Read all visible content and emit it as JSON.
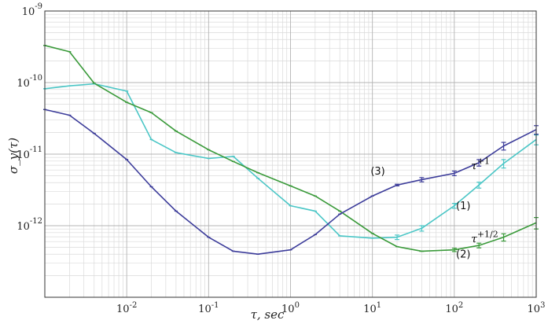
{
  "chart_data": {
    "type": "line",
    "xscale": "log",
    "yscale": "log",
    "xlim": [
      0.001,
      1000
    ],
    "ylim": [
      1e-13,
      1e-09
    ],
    "grid": true,
    "xlabel": "τ, sec",
    "ylabel": "σ_y(τ)",
    "xticks": [
      {
        "value": 0.01,
        "base": "10",
        "exp": "-2"
      },
      {
        "value": 0.1,
        "base": "10",
        "exp": "-1"
      },
      {
        "value": 1,
        "base": "10",
        "exp": "0"
      },
      {
        "value": 10,
        "base": "10",
        "exp": "1"
      },
      {
        "value": 100,
        "base": "10",
        "exp": "2"
      },
      {
        "value": 1000,
        "base": "10",
        "exp": "3"
      }
    ],
    "yticks": [
      {
        "value": 1e-09,
        "base": "10",
        "exp": "-9"
      },
      {
        "value": 1e-10,
        "base": "10",
        "exp": "-10"
      },
      {
        "value": 1e-11,
        "base": "10",
        "exp": "-11"
      },
      {
        "value": 1e-12,
        "base": "10",
        "exp": "-12"
      }
    ],
    "series": [
      {
        "label": "(1)",
        "color": "#4ac6c6",
        "x": [
          0.001,
          0.002,
          0.004,
          0.01,
          0.02,
          0.04,
          0.1,
          0.2,
          0.4,
          1,
          2,
          4,
          10,
          20,
          40,
          100,
          200,
          400,
          1000
        ],
        "y": [
          8.2e-11,
          9e-11,
          9.6e-11,
          7.6e-11,
          1.6e-11,
          1.05e-11,
          8.7e-12,
          9.3e-12,
          4.6e-12,
          1.9e-12,
          1.6e-12,
          7.2e-13,
          6.7e-13,
          6.9e-13,
          9.2e-13,
          1.9e-12,
          3.7e-12,
          7.4e-12,
          1.6e-11
        ],
        "err": [
          0,
          0,
          0,
          0,
          0,
          0,
          0,
          0,
          0,
          0,
          0,
          0,
          0,
          5e-14,
          8e-14,
          1.5e-13,
          3.5e-13,
          1e-12,
          2.5e-12
        ]
      },
      {
        "label": "(2)",
        "color": "#3a9a3a",
        "x": [
          0.001,
          0.002,
          0.004,
          0.01,
          0.02,
          0.04,
          0.1,
          0.2,
          0.4,
          1,
          2,
          4,
          10,
          20,
          40,
          100,
          200,
          400,
          1000
        ],
        "y": [
          3.3e-10,
          2.7e-10,
          9.8e-11,
          5.3e-11,
          3.8e-11,
          2.1e-11,
          1.15e-11,
          7.9e-12,
          5.5e-12,
          3.6e-12,
          2.6e-12,
          1.6e-12,
          7.8e-13,
          5.1e-13,
          4.4e-13,
          4.6e-13,
          5.3e-13,
          6.9e-13,
          1.1e-12
        ],
        "err": [
          0,
          0,
          0,
          0,
          0,
          0,
          0,
          0,
          0,
          0,
          0,
          0,
          0,
          0,
          2e-15,
          2.5e-14,
          4e-14,
          8e-14,
          2e-13
        ]
      },
      {
        "label": "(3)",
        "color": "#3c3c9a",
        "x": [
          0.001,
          0.002,
          0.004,
          0.01,
          0.02,
          0.04,
          0.1,
          0.2,
          0.4,
          1,
          2,
          4,
          10,
          20,
          40,
          100,
          200,
          400,
          1000
        ],
        "y": [
          4.2e-11,
          3.5e-11,
          1.95e-11,
          8.4e-12,
          3.5e-12,
          1.6e-12,
          6.9e-13,
          4.4e-13,
          4e-13,
          4.6e-13,
          7.5e-13,
          1.45e-12,
          2.6e-12,
          3.7e-12,
          4.4e-12,
          5.4e-12,
          7.6e-12,
          1.3e-11,
          2.2e-11
        ],
        "err": [
          0,
          0,
          0,
          0,
          0,
          0,
          0,
          0,
          0,
          0,
          0,
          0,
          0,
          1e-13,
          3e-13,
          4e-13,
          8e-13,
          1.6e-12,
          3e-12
        ]
      }
    ],
    "annotations": [
      {
        "text": "(3)",
        "x": 9.5,
        "y": 5.2e-12
      },
      {
        "text": "(1)",
        "x": 105,
        "y": 1.7e-12
      },
      {
        "text": "(2)",
        "x": 105,
        "y": 3.6e-13
      }
    ],
    "slope_labels": [
      {
        "base": "τ",
        "exp": "+1",
        "x": 160,
        "y": 6.1e-12
      },
      {
        "base": "τ",
        "exp": "+1/2",
        "x": 160,
        "y": 5.8e-13
      }
    ]
  }
}
